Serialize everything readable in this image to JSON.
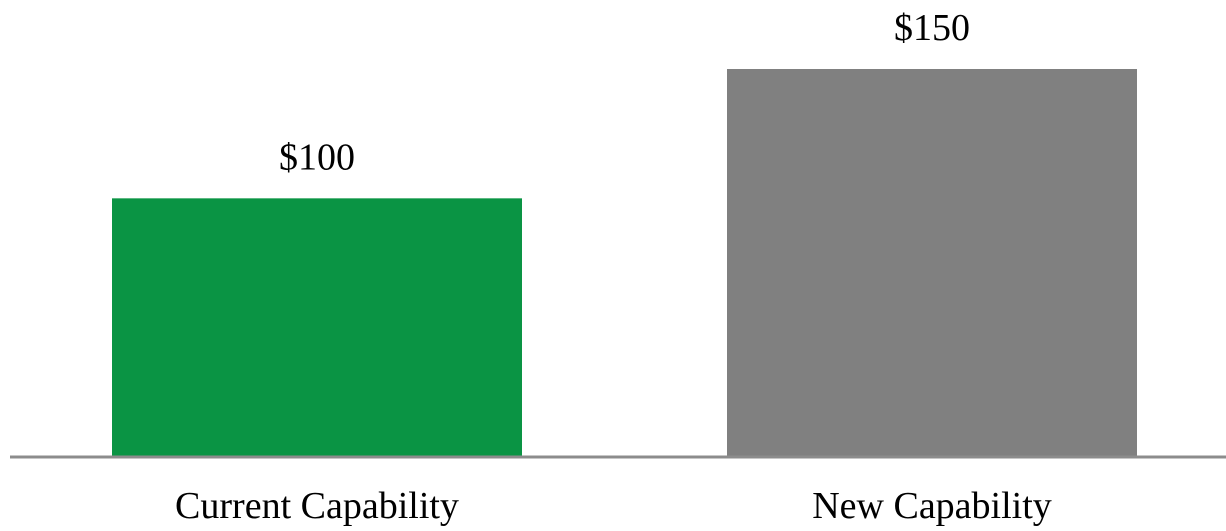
{
  "chart_data": {
    "type": "bar",
    "categories": [
      "Current Capability",
      "New Capability"
    ],
    "values": [
      100,
      150
    ],
    "value_labels": [
      "$100",
      "$150"
    ],
    "title": "",
    "xlabel": "",
    "ylabel": "",
    "ylim": [
      0,
      150
    ],
    "grid": false,
    "legend": "none",
    "colors": {
      "bars": [
        "#0a9444",
        "#808080"
      ],
      "baseline": "#8c8c8c"
    }
  }
}
